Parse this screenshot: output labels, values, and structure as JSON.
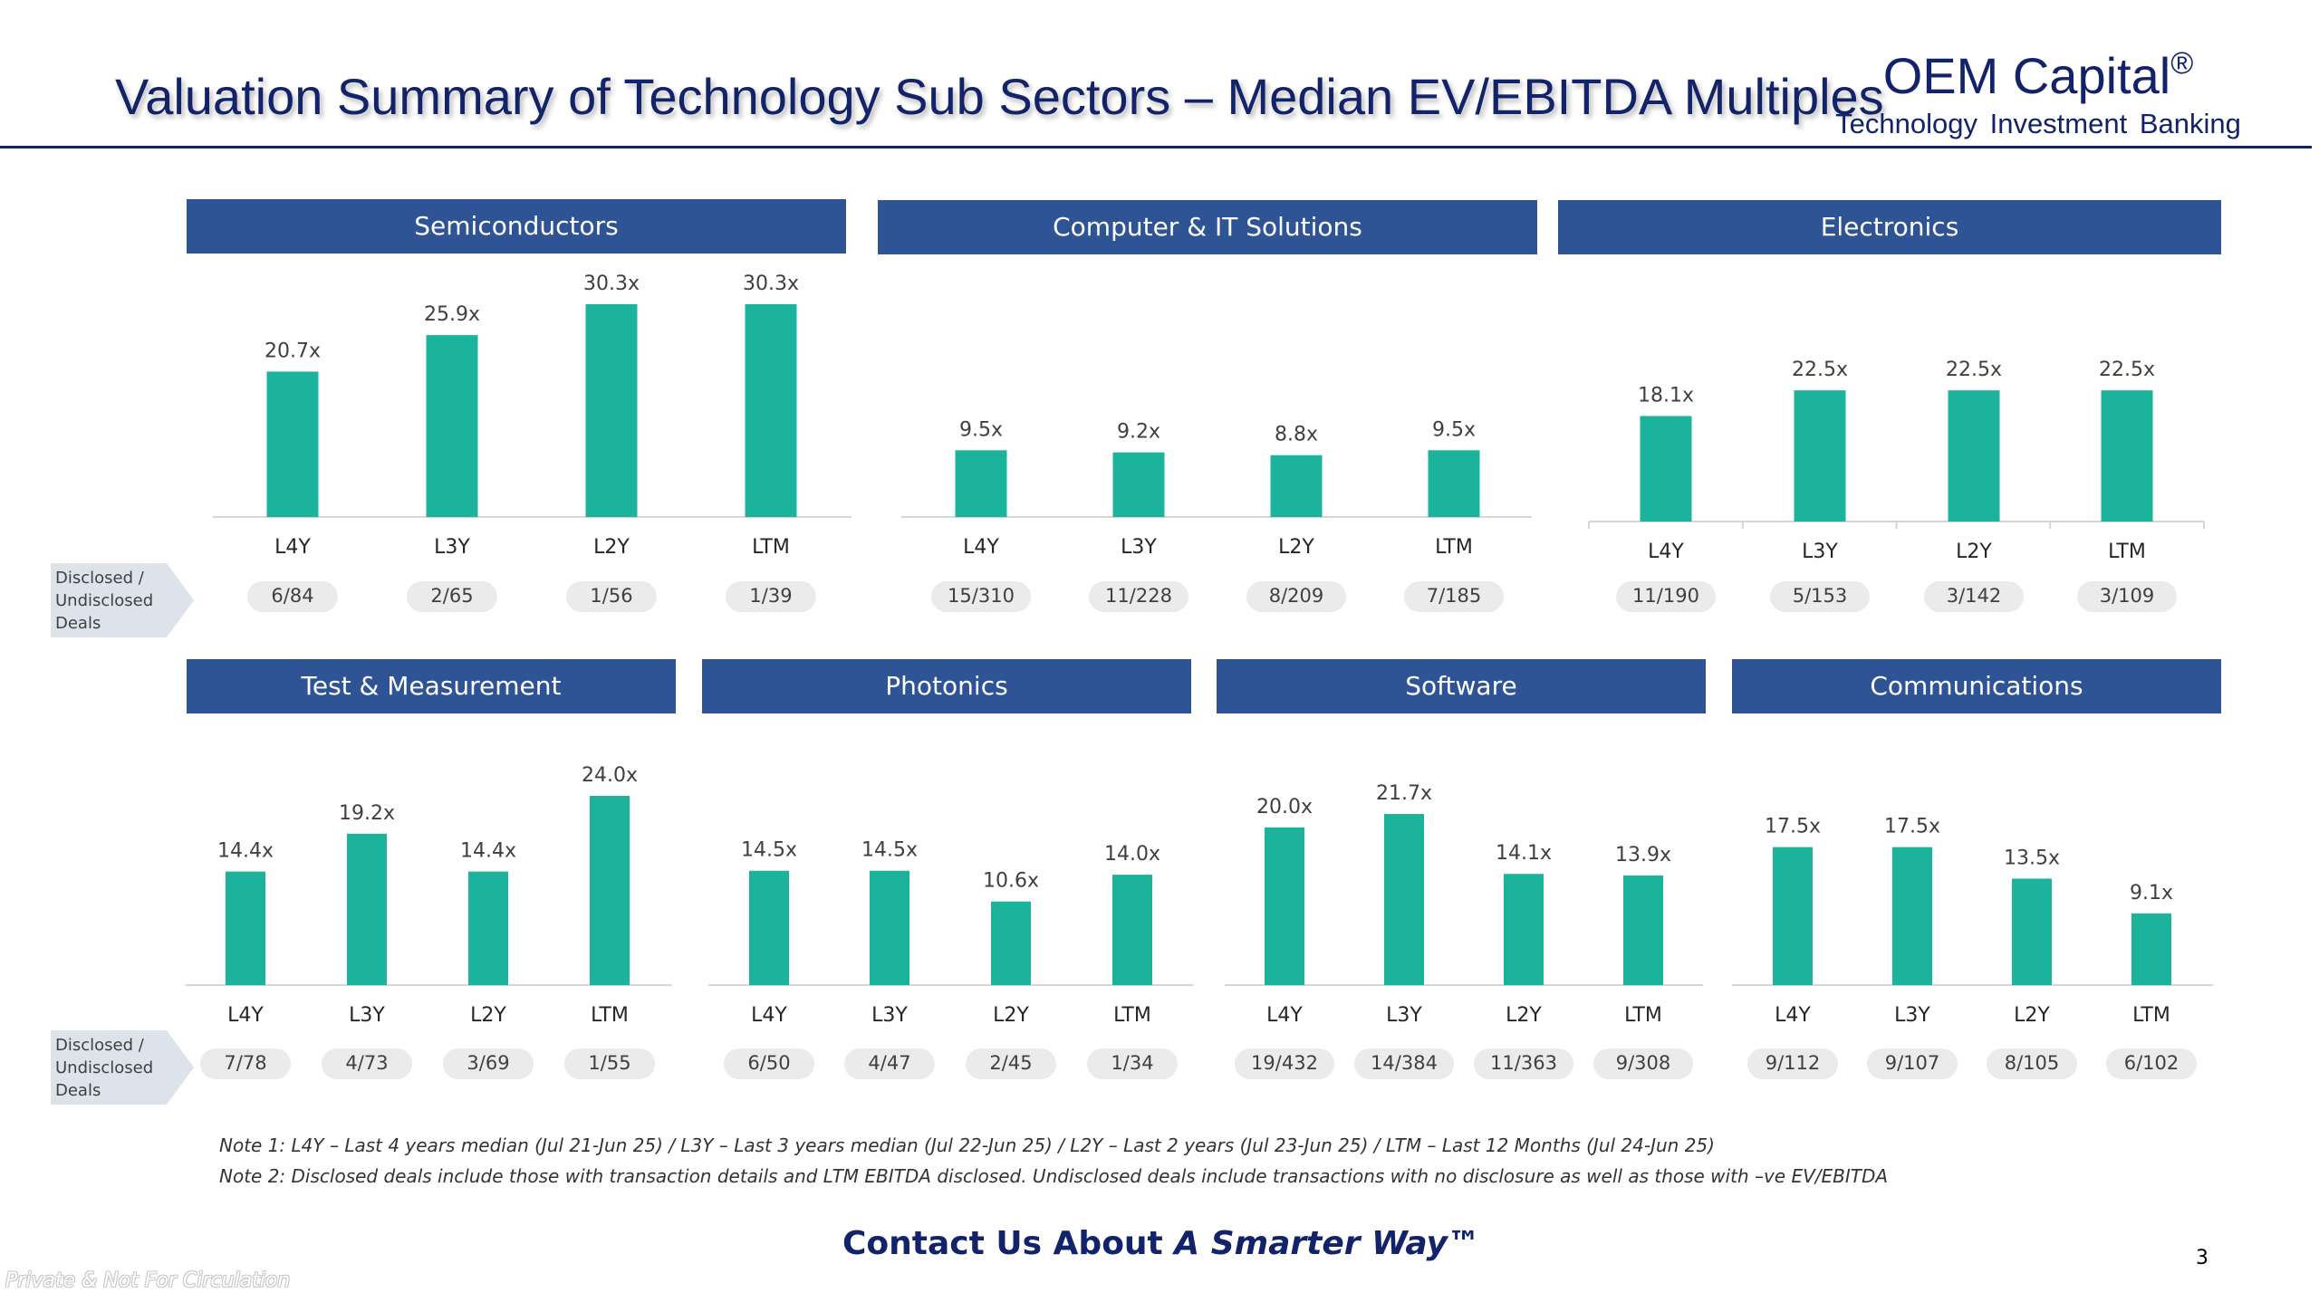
{
  "header": {
    "title": "Valuation Summary of Technology Sub Sectors – Median EV/EBITDA Multiples",
    "logo_name": "OEM Capital",
    "logo_reg": "®",
    "logo_tagline": "Technology Investment Banking"
  },
  "deals_row_label": [
    "Disclosed /",
    "Undisclosed",
    "Deals"
  ],
  "colors": {
    "bar": "#1bb39b",
    "header": "#2e5496",
    "title": "#12236a",
    "deal_pill": "#ebebeb"
  },
  "chart_data": [
    {
      "type": "bar",
      "title": "Semiconductors",
      "categories": [
        "L4Y",
        "L3Y",
        "L2Y",
        "LTM"
      ],
      "values": [
        20.7,
        25.9,
        30.3,
        30.3
      ],
      "labels": [
        "20.7x",
        "25.9x",
        "30.3x",
        "30.3x"
      ],
      "deals": [
        "6/84",
        "2/65",
        "1/56",
        "1/39"
      ],
      "ylim": [
        0,
        30.3
      ]
    },
    {
      "type": "bar",
      "title": "Computer & IT Solutions",
      "categories": [
        "L4Y",
        "L3Y",
        "L2Y",
        "LTM"
      ],
      "values": [
        9.5,
        9.2,
        8.8,
        9.5
      ],
      "labels": [
        "9.5x",
        "9.2x",
        "8.8x",
        "9.5x"
      ],
      "deals": [
        "15/310",
        "11/228",
        "8/209",
        "7/185"
      ],
      "ylim": [
        0,
        30.3
      ]
    },
    {
      "type": "bar",
      "title": "Electronics",
      "categories": [
        "L4Y",
        "L3Y",
        "L2Y",
        "LTM"
      ],
      "values": [
        18.1,
        22.5,
        22.5,
        22.5
      ],
      "labels": [
        "18.1x",
        "22.5x",
        "22.5x",
        "22.5x"
      ],
      "deals": [
        "11/190",
        "5/153",
        "3/142",
        "3/109"
      ],
      "ylim": [
        0,
        36.5
      ]
    },
    {
      "type": "bar",
      "title": "Test & Measurement",
      "categories": [
        "L4Y",
        "L3Y",
        "L2Y",
        "LTM"
      ],
      "values": [
        14.4,
        19.2,
        14.4,
        24.0
      ],
      "labels": [
        "14.4x",
        "19.2x",
        "14.4x",
        "24.0x"
      ],
      "deals": [
        "7/78",
        "4/73",
        "3/69",
        "1/55"
      ],
      "ylim": [
        0,
        24.0
      ]
    },
    {
      "type": "bar",
      "title": "Photonics",
      "categories": [
        "L4Y",
        "L3Y",
        "L2Y",
        "LTM"
      ],
      "values": [
        14.5,
        14.5,
        10.6,
        14.0
      ],
      "labels": [
        "14.5x",
        "14.5x",
        "10.6x",
        "14.0x"
      ],
      "deals": [
        "6/50",
        "4/47",
        "2/45",
        "1/34"
      ],
      "ylim": [
        0,
        24.0
      ]
    },
    {
      "type": "bar",
      "title": "Software",
      "categories": [
        "L4Y",
        "L3Y",
        "L2Y",
        "LTM"
      ],
      "values": [
        20.0,
        21.7,
        14.1,
        13.9
      ],
      "labels": [
        "20.0x",
        "21.7x",
        "14.1x",
        "13.9x"
      ],
      "deals": [
        "19/432",
        "14/384",
        "11/363",
        "9/308"
      ],
      "ylim": [
        0,
        24.0
      ]
    },
    {
      "type": "bar",
      "title": "Communications",
      "categories": [
        "L4Y",
        "L3Y",
        "L2Y",
        "LTM"
      ],
      "values": [
        17.5,
        17.5,
        13.5,
        9.1
      ],
      "labels": [
        "17.5x",
        "17.5x",
        "13.5x",
        "9.1x"
      ],
      "deals": [
        "9/112",
        "9/107",
        "8/105",
        "6/102"
      ],
      "ylim": [
        0,
        24.0
      ]
    }
  ],
  "notes": [
    "Note 1: L4Y – Last 4 years median (Jul 21-Jun 25) / L3Y – Last 3 years median (Jul 22-Jun 25) / L2Y – Last 2 years (Jul 23-Jun 25) / LTM – Last 12 Months (Jul 24-Jun 25)",
    "Note 2: Disclosed deals include those with transaction details and LTM EBITDA disclosed. Undisclosed deals include transactions with no disclosure as well as those with –ve EV/EBITDA"
  ],
  "footer": {
    "contact_prefix": "Contact Us About ",
    "contact_emphasis": "A Smarter Way™",
    "page_number": "3",
    "watermark": "Private & Not For Circulation"
  }
}
